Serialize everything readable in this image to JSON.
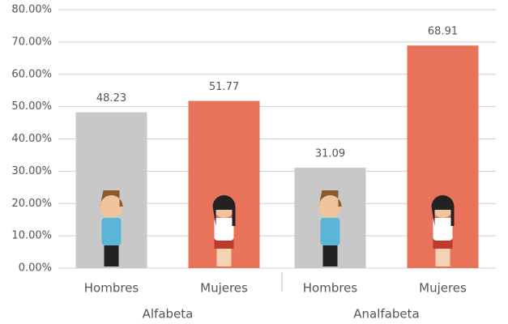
{
  "chart_data": {
    "type": "grouped_bar",
    "categories": [
      "Alfabeta",
      "Analfabeta"
    ],
    "series": [
      {
        "name": "Hombres",
        "color": "#c8c8c8",
        "values": [
          48.23,
          31.09
        ]
      },
      {
        "name": "Mujeres",
        "color": "#e8735a",
        "values": [
          51.77,
          68.91
        ]
      }
    ],
    "ylim": [
      0,
      80
    ],
    "yticks": [
      {
        "value": 0,
        "label": "0.00%"
      },
      {
        "value": 10,
        "label": "10.00%"
      },
      {
        "value": 20,
        "label": "20.00%"
      },
      {
        "value": 30,
        "label": "30.00%"
      },
      {
        "value": 40,
        "label": "40.00%"
      },
      {
        "value": 50,
        "label": "50.00%"
      },
      {
        "value": 60,
        "label": "60.00%"
      },
      {
        "value": 70,
        "label": "70.00%"
      },
      {
        "value": 80,
        "label": "80.00%"
      }
    ],
    "grid": true
  }
}
